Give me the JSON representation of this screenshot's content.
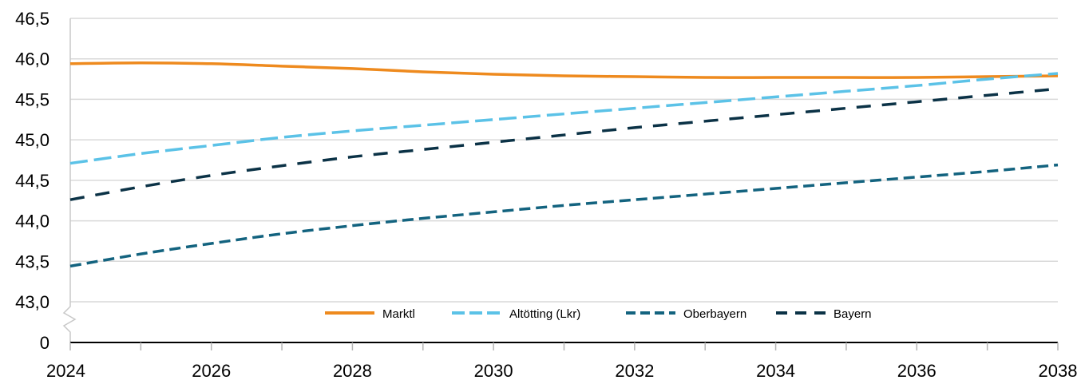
{
  "chart_data": {
    "type": "line",
    "title": "",
    "xlabel": "",
    "ylabel": "",
    "xlim": [
      2024,
      2038
    ],
    "ylim": [
      43.0,
      46.5
    ],
    "y_axis_break": true,
    "y_ticks": [
      "0",
      "43,0",
      "43,5",
      "44,0",
      "44,5",
      "45,0",
      "45,5",
      "46,0",
      "46,5"
    ],
    "x_ticks": [
      "2024",
      "2026",
      "2028",
      "2030",
      "2032",
      "2034",
      "2036",
      "2038"
    ],
    "grid": true,
    "legend_position": "bottom-center",
    "x": [
      2024,
      2025,
      2026,
      2027,
      2028,
      2029,
      2030,
      2031,
      2032,
      2033,
      2034,
      2035,
      2036,
      2037,
      2038
    ],
    "series": [
      {
        "name": "Marktl",
        "color": "#EE8A1E",
        "style": "solid",
        "values": [
          45.94,
          45.95,
          45.94,
          45.91,
          45.88,
          45.84,
          45.81,
          45.79,
          45.78,
          45.77,
          45.77,
          45.77,
          45.77,
          45.78,
          45.79
        ]
      },
      {
        "name": "Altötting (Lkr)",
        "color": "#5BC2E7",
        "style": "long-dash",
        "values": [
          44.71,
          44.83,
          44.93,
          45.03,
          45.11,
          45.18,
          45.25,
          45.32,
          45.39,
          45.46,
          45.53,
          45.6,
          45.67,
          45.75,
          45.82
        ]
      },
      {
        "name": "Oberbayern",
        "color": "#13637F",
        "style": "dash",
        "values": [
          43.44,
          43.59,
          43.72,
          43.84,
          43.94,
          44.03,
          44.11,
          44.19,
          44.26,
          44.33,
          44.4,
          44.47,
          44.54,
          44.61,
          44.69
        ]
      },
      {
        "name": "Bayern",
        "color": "#0B3246",
        "style": "dash-gap",
        "values": [
          44.26,
          44.42,
          44.56,
          44.68,
          44.79,
          44.88,
          44.97,
          45.06,
          45.15,
          45.23,
          45.31,
          45.39,
          45.47,
          45.55,
          45.63
        ]
      }
    ]
  }
}
